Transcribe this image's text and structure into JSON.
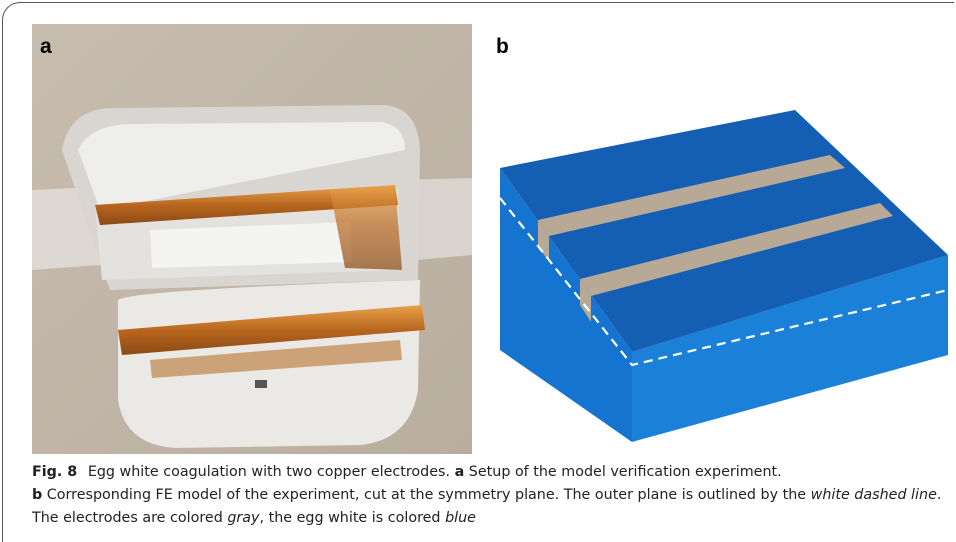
{
  "panels": [
    {
      "label": "a"
    },
    {
      "label": "b"
    }
  ],
  "caption": {
    "runs": [
      "Fig. 8",
      "Egg white coagulation with two copper electrodes.",
      "a",
      "Setup of the model verification experiment.",
      "b",
      "Corresponding FE model of the experiment, cut at the symmetry plane. The outer plane is outlined by the",
      "white dashed line",
      ". The electrodes are colored",
      "gray",
      ", the egg white is colored",
      "blue"
    ]
  }
}
